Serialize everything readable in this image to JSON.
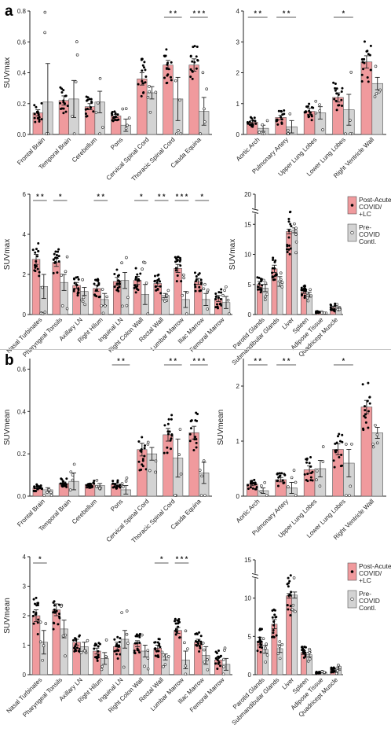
{
  "panels": [
    {
      "label": "a"
    },
    {
      "label": "b"
    }
  ],
  "colors": {
    "covid": "#f09a9d",
    "control": "#d3d3d3",
    "covid_dot": "#000000",
    "control_dot": "#ffffff"
  },
  "legend": {
    "covid": [
      "Post-Acute",
      "COVID/",
      "+LC"
    ],
    "control": [
      "Pre-",
      "COVID",
      "Contl."
    ]
  },
  "chart_data": [
    {
      "id": "a1",
      "type": "bar",
      "ylabel": "SUVmax",
      "ylim": [
        0,
        0.8
      ],
      "yticks": [
        0.0,
        0.2,
        0.4,
        0.6,
        0.8
      ],
      "tick_labels": [
        "0.0",
        "0.2",
        "0.4",
        "0.6",
        "0.8"
      ],
      "categories": [
        "Frontal Brain",
        "Temporal Brain",
        "Cerebellum",
        "Pons",
        "Cervical Spinal Cord",
        "Thoracic Spinal Cord",
        "Cauda Equina"
      ],
      "series": [
        {
          "values": [
            0.14,
            0.22,
            0.18,
            0.12,
            0.36,
            0.45,
            0.45
          ],
          "err": [
            0.02,
            0.03,
            0.02,
            0.01,
            0.04,
            0.03,
            0.04
          ]
        },
        {
          "values": [
            0.21,
            0.23,
            0.21,
            0.06,
            0.27,
            0.23,
            0.15
          ],
          "err": [
            0.25,
            0.12,
            0.07,
            0.04,
            0.04,
            0.14,
            0.09
          ]
        }
      ],
      "significance": [
        {
          "index": 5,
          "text": "* *"
        },
        {
          "index": 6,
          "text": "* * *"
        }
      ]
    },
    {
      "id": "a2",
      "type": "bar",
      "ylabel": "",
      "ylim": [
        0,
        4
      ],
      "yticks": [
        0,
        1,
        2,
        3,
        4
      ],
      "tick_labels": [
        "0",
        "1",
        "2",
        "3",
        "4"
      ],
      "categories": [
        "Aortic Arch",
        "Pulmonary Artery",
        "Upper Lung Lobes",
        "Lower Lung Lobes",
        "Right Ventricle Wall"
      ],
      "series": [
        {
          "values": [
            0.4,
            0.55,
            0.75,
            1.2,
            2.35
          ],
          "err": [
            0.05,
            0.07,
            0.1,
            0.15,
            0.2
          ]
        },
        {
          "values": [
            0.2,
            0.25,
            0.7,
            0.8,
            1.65
          ],
          "err": [
            0.1,
            0.2,
            0.2,
            0.5,
            0.2
          ]
        }
      ],
      "significance": [
        {
          "index": 0,
          "text": "* *"
        },
        {
          "index": 1,
          "text": "* *"
        },
        {
          "index": 3,
          "text": "*"
        }
      ]
    },
    {
      "id": "a3",
      "type": "bar",
      "ylabel": "SUVmax",
      "ylim": [
        0,
        6
      ],
      "yticks": [
        0,
        2,
        4,
        6
      ],
      "tick_labels": [
        "0",
        "2",
        "4",
        "6"
      ],
      "categories": [
        "Nasal Turbinates",
        "Pharyngeal Tonsils",
        "Axillary LN",
        "Right Hilum",
        "Inguinal LN",
        "Right Colon Wall",
        "Rectal Wall",
        "Lumbar Marrow",
        "Iliac Marrow",
        "Femoral Marrow"
      ],
      "series": [
        {
          "values": [
            2.75,
            2.6,
            1.45,
            1.3,
            1.65,
            1.7,
            1.55,
            2.3,
            1.65,
            0.8
          ],
          "err": [
            0.25,
            0.2,
            0.15,
            0.15,
            0.2,
            0.2,
            0.15,
            0.2,
            0.15,
            0.15
          ]
        },
        {
          "values": [
            1.4,
            1.6,
            1.15,
            0.75,
            1.7,
            1.0,
            0.95,
            0.75,
            0.75,
            0.6
          ],
          "err": [
            0.6,
            0.4,
            0.2,
            0.3,
            0.4,
            0.5,
            0.1,
            0.4,
            0.3,
            0.3
          ]
        }
      ],
      "significance": [
        {
          "index": 0,
          "text": "* *"
        },
        {
          "index": 1,
          "text": "*"
        },
        {
          "index": 3,
          "text": "* *"
        },
        {
          "index": 5,
          "text": "*"
        },
        {
          "index": 6,
          "text": "* *"
        },
        {
          "index": 7,
          "text": "* * *"
        },
        {
          "index": 8,
          "text": "*"
        }
      ]
    },
    {
      "id": "a4",
      "type": "bar",
      "ylabel": "SUVmax",
      "ylim": [
        0,
        20
      ],
      "broken_axis": true,
      "yticks": [
        0,
        5,
        10,
        15,
        20
      ],
      "tick_labels": [
        "0",
        "5",
        "10",
        "15",
        "20"
      ],
      "categories": [
        "Parotid Glands",
        "Submandibular Glands",
        "Liver",
        "Spleen",
        "Adipose Tissue",
        "Quadricept Muscle"
      ],
      "series": [
        {
          "values": [
            5.0,
            7.6,
            13.8,
            3.8,
            0.4,
            1.2
          ],
          "err": [
            0.5,
            0.6,
            0.4,
            0.3,
            0.05,
            0.2
          ]
        },
        {
          "values": [
            4.4,
            5.5,
            14.0,
            3.3,
            0.35,
            1.1
          ],
          "err": [
            0.6,
            0.8,
            0.4,
            0.4,
            0.05,
            0.2
          ]
        }
      ],
      "significance": []
    },
    {
      "id": "b1",
      "type": "bar",
      "ylabel": "SUVmean",
      "ylim": [
        0,
        0.65
      ],
      "yticks": [
        0.0,
        0.2,
        0.4,
        0.6
      ],
      "tick_labels": [
        "0.0",
        "0.2",
        "0.4",
        "0.6"
      ],
      "categories": [
        "Frontal Brain",
        "Temporal Brain",
        "Cerebellum",
        "Pons",
        "Cervical Spinal Cord",
        "Thoracic Spinal Cord",
        "Cauda Equina"
      ],
      "series": [
        {
          "values": [
            0.04,
            0.06,
            0.055,
            0.055,
            0.22,
            0.29,
            0.3
          ],
          "err": [
            0.005,
            0.007,
            0.006,
            0.006,
            0.03,
            0.03,
            0.03
          ]
        },
        {
          "values": [
            0.03,
            0.07,
            0.05,
            0.03,
            0.2,
            0.18,
            0.11
          ],
          "err": [
            0.01,
            0.04,
            0.01,
            0.02,
            0.03,
            0.09,
            0.05
          ]
        }
      ],
      "significance": [
        {
          "index": 3,
          "text": "* *"
        },
        {
          "index": 5,
          "text": "* *"
        },
        {
          "index": 6,
          "text": "* * *"
        }
      ]
    },
    {
      "id": "b2",
      "type": "bar",
      "ylabel": "SUVmean",
      "ylim": [
        0,
        2.5
      ],
      "yticks": [
        0,
        1,
        2
      ],
      "tick_labels": [
        "0",
        "1",
        "2"
      ],
      "categories": [
        "Aortic Arch",
        "Pulmonary Artery",
        "Upper Lung Lobes",
        "Lower Lung Lobes",
        "Right Ventricle Wall"
      ],
      "series": [
        {
          "values": [
            0.22,
            0.3,
            0.48,
            0.85,
            1.62
          ],
          "err": [
            0.03,
            0.04,
            0.07,
            0.1,
            0.12
          ]
        },
        {
          "values": [
            0.1,
            0.15,
            0.5,
            0.6,
            1.15
          ],
          "err": [
            0.05,
            0.1,
            0.15,
            0.25,
            0.1
          ]
        }
      ],
      "significance": [
        {
          "index": 0,
          "text": "* *"
        },
        {
          "index": 1,
          "text": "* *"
        },
        {
          "index": 3,
          "text": "*"
        }
      ]
    },
    {
      "id": "b3",
      "type": "bar",
      "ylabel": "SUVmean",
      "ylim": [
        0,
        4
      ],
      "yticks": [
        0,
        1,
        2,
        3,
        4
      ],
      "tick_labels": [
        "0",
        "1",
        "2",
        "3",
        "4"
      ],
      "categories": [
        "Nasal Turbinates",
        "Pharyngeal Tonsils",
        "Axillary LN",
        "Right Hilum",
        "Inguinal LN",
        "Right Colon Wall",
        "Rectal Wall",
        "Lumbar Marrow",
        "Iliac Marrow",
        "Femoral Marrow"
      ],
      "series": [
        {
          "values": [
            2.0,
            2.2,
            1.1,
            0.8,
            0.95,
            1.05,
            0.9,
            1.5,
            1.1,
            0.5
          ],
          "err": [
            0.2,
            0.2,
            0.1,
            0.1,
            0.15,
            0.1,
            0.1,
            0.1,
            0.1,
            0.1
          ]
        },
        {
          "values": [
            1.1,
            1.55,
            0.95,
            0.55,
            1.2,
            0.8,
            0.6,
            0.5,
            0.65,
            0.35
          ],
          "err": [
            0.4,
            0.3,
            0.15,
            0.2,
            0.3,
            0.2,
            0.1,
            0.3,
            0.3,
            0.2
          ]
        }
      ],
      "significance": [
        {
          "index": 0,
          "text": "*"
        },
        {
          "index": 6,
          "text": "*"
        },
        {
          "index": 7,
          "text": "* * *"
        }
      ]
    },
    {
      "id": "b4",
      "type": "bar",
      "ylabel": "",
      "ylim": [
        0,
        15
      ],
      "broken_axis": true,
      "yticks": [
        0,
        5,
        10,
        15
      ],
      "tick_labels": [
        "0",
        "5",
        "10",
        "15"
      ],
      "categories": [
        "Parotid Glands",
        "Submandibular Glands",
        "Liver",
        "Spleen",
        "Adipose Tissue",
        "Quadricept Muscle"
      ],
      "series": [
        {
          "values": [
            4.4,
            6.6,
            10.3,
            2.9,
            0.25,
            0.6
          ],
          "err": [
            0.5,
            0.6,
            0.3,
            0.25,
            0.04,
            0.1
          ]
        },
        {
          "values": [
            3.3,
            3.4,
            10.4,
            2.6,
            0.3,
            0.8
          ],
          "err": [
            0.5,
            0.5,
            0.4,
            0.3,
            0.05,
            0.2
          ]
        }
      ],
      "significance": []
    }
  ]
}
